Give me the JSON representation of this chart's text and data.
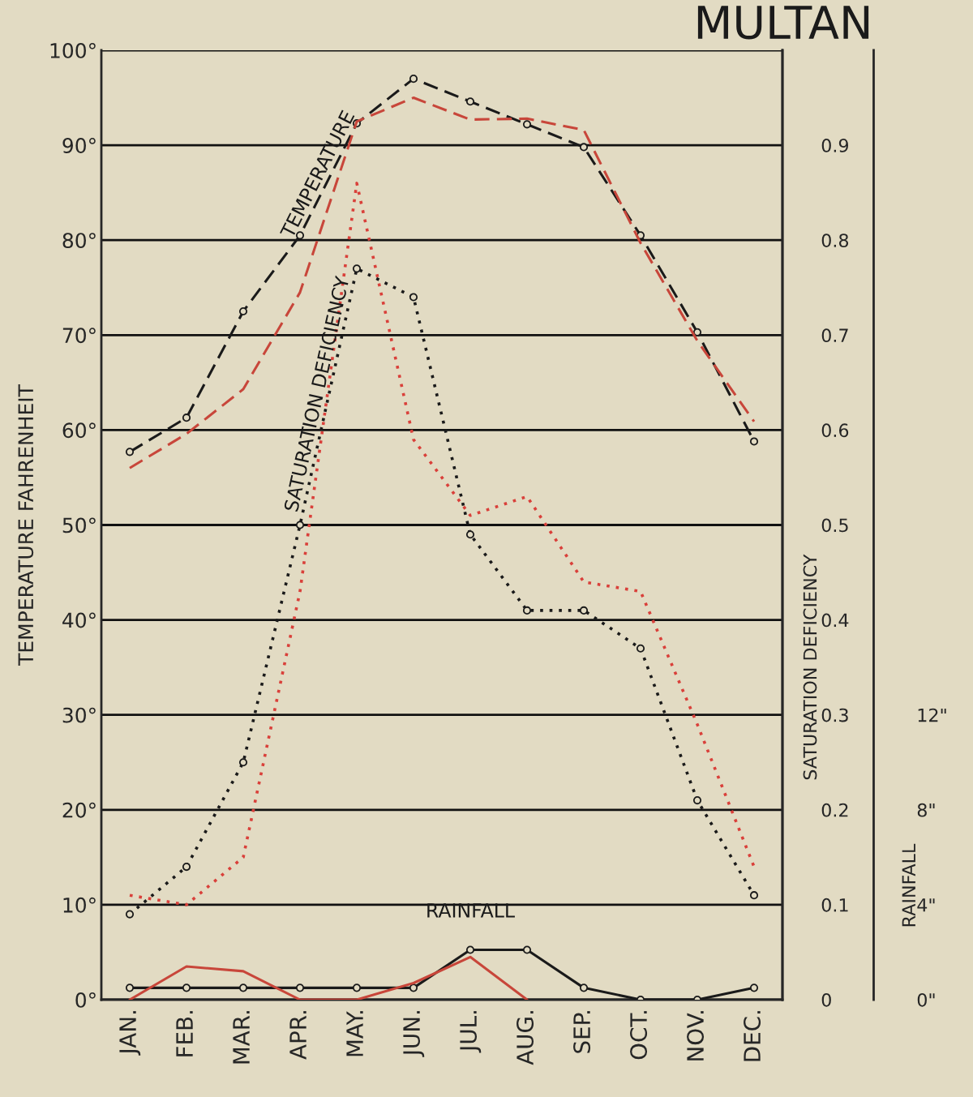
{
  "chart_data": {
    "type": "line",
    "title": "MULTAN",
    "ylabel": "TEMPERATURE FAHRENHEIT",
    "y2label": "SATURATION DEFICIENCY",
    "y3label": "RAINFALL",
    "categories": [
      "JAN.",
      "FEB.",
      "MAR.",
      "APR.",
      "MAY.",
      "JUN.",
      "JUL.",
      "AUG.",
      "SEP.",
      "OCT.",
      "NOV.",
      "DEC."
    ],
    "ylim": [
      0,
      100
    ],
    "yticks": [
      {
        "value": 0,
        "label": "0°"
      },
      {
        "value": 10,
        "label": "10°"
      },
      {
        "value": 20,
        "label": "20°"
      },
      {
        "value": 30,
        "label": "30°"
      },
      {
        "value": 40,
        "label": "40°"
      },
      {
        "value": 50,
        "label": "50°"
      },
      {
        "value": 60,
        "label": "60°"
      },
      {
        "value": 70,
        "label": "70°"
      },
      {
        "value": 80,
        "label": "80°"
      },
      {
        "value": 90,
        "label": "90°"
      },
      {
        "value": 100,
        "label": "100°"
      }
    ],
    "y2lim": [
      0,
      1.0
    ],
    "y2ticks": [
      0,
      0.1,
      0.2,
      0.3,
      0.4,
      0.5,
      0.6,
      0.7,
      0.8,
      0.9
    ],
    "y3lim": [
      0,
      40
    ],
    "y3ticks": [
      {
        "value": 0,
        "label": "0\""
      },
      {
        "value": 4,
        "label": "4\""
      },
      {
        "value": 8,
        "label": "8\""
      },
      {
        "value": 12,
        "label": "12\""
      }
    ],
    "grid": "y",
    "legend": false,
    "series": [
      {
        "name": "TEMPERATURE",
        "color": "#1a1a1a",
        "line_style": "dashed",
        "marker": "circle",
        "values": [
          57.7,
          61.3,
          72.5,
          80.5,
          92.3,
          97,
          94.6,
          92.2,
          89.8,
          80.5,
          70.3,
          58.8
        ]
      },
      {
        "color": "#c8463a",
        "line_style": "dashed",
        "marker": "none",
        "values": [
          56,
          59.6,
          64.3,
          74.5,
          92.5,
          95,
          92.7,
          92.8,
          91.6,
          79.7,
          69.4,
          60.9
        ]
      },
      {
        "name": "SATURATION DEFICIENCY",
        "axis": "y2",
        "color": "#1a1a1a",
        "line_style": "dotted",
        "marker": "circle",
        "values": [
          0.09,
          0.14,
          0.25,
          0.5,
          0.77,
          0.74,
          0.49,
          0.41,
          0.41,
          0.37,
          0.21,
          0.11
        ]
      },
      {
        "axis": "y2",
        "color": "#d9403a",
        "line_style": "dotted",
        "marker": "none",
        "values": [
          0.11,
          0.1,
          0.15,
          0.43,
          0.86,
          0.59,
          0.51,
          0.53,
          0.44,
          0.43,
          0.29,
          0.14
        ]
      },
      {
        "name": "RAINFALL",
        "axis": "y3",
        "color": "#1a1a1a",
        "line_style": "solid",
        "marker": "circle",
        "values": [
          0.5,
          0.5,
          0.5,
          0.5,
          0.5,
          0.5,
          2.1,
          2.1,
          0.5,
          0,
          0,
          0.5
        ]
      },
      {
        "axis": "y3",
        "color": "#c8463a",
        "line_style": "solid",
        "marker": "none",
        "values": [
          0,
          1.4,
          1.2,
          0,
          0,
          0.7,
          1.8,
          0,
          null,
          null,
          null,
          null
        ]
      }
    ]
  }
}
